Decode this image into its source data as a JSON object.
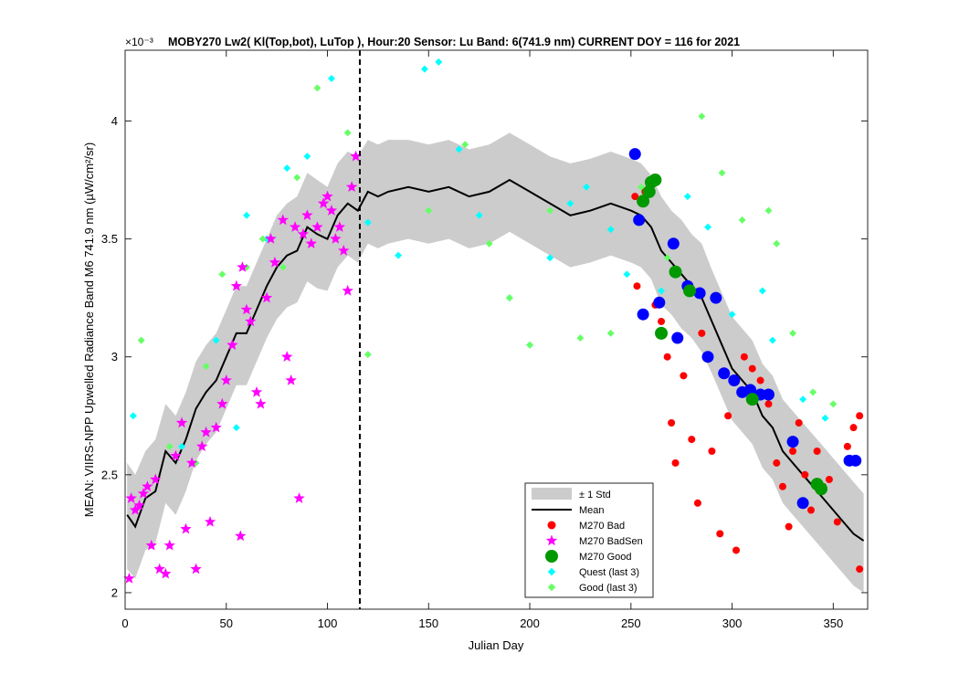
{
  "chart_data": {
    "type": "scatter",
    "title": "MOBY270   Lw2( Kl(Top,bot), LuTop ),   Hour:20 Sensor: Lu Band: 6(741.9 nm)   CURRENT DOY = 116 for 2021",
    "exponent_label": "×10⁻³",
    "xlabel": "Julian Day",
    "ylabel": "MEAN: VIIRS-NPP Upwelled Radiance Band M6 741.9 nm (µW/cm²/sr)",
    "xlim": [
      0,
      367
    ],
    "ylim": [
      1.93,
      4.3
    ],
    "xticks": [
      0,
      50,
      100,
      150,
      200,
      250,
      300,
      350
    ],
    "yticks": [
      2,
      2.5,
      3,
      3.5,
      4
    ],
    "xtick_labels": [
      "0",
      "50",
      "100",
      "150",
      "200",
      "250",
      "300",
      "350"
    ],
    "ytick_labels": [
      "2",
      "2.5",
      "3",
      "3.5",
      "4"
    ],
    "current_doy": 116,
    "legend": {
      "position": "bottom-center",
      "entries": [
        "± 1 Std",
        "Mean",
        "M270 Bad",
        "M270 BadSen",
        "M270 Good",
        "Quest (last 3)",
        "Good (last 3)"
      ]
    },
    "colors": {
      "std_band": "#cccccc",
      "mean": "#000000",
      "bad": "#ff0000",
      "badsen": "#ff00ff",
      "good": "#009900",
      "quest": "#00ffff",
      "good3": "#66ff66",
      "blue": "#0000ff"
    },
    "mean": {
      "x": [
        1,
        5,
        10,
        15,
        20,
        25,
        30,
        35,
        40,
        45,
        50,
        55,
        60,
        65,
        70,
        75,
        80,
        85,
        90,
        95,
        100,
        105,
        110,
        115,
        120,
        125,
        130,
        140,
        150,
        160,
        170,
        180,
        190,
        200,
        210,
        220,
        230,
        240,
        250,
        255,
        260,
        265,
        270,
        275,
        280,
        285,
        290,
        295,
        300,
        305,
        310,
        315,
        320,
        325,
        330,
        335,
        340,
        345,
        350,
        355,
        360,
        365
      ],
      "y": [
        2.33,
        2.28,
        2.4,
        2.43,
        2.6,
        2.55,
        2.65,
        2.78,
        2.85,
        2.9,
        3.0,
        3.1,
        3.1,
        3.2,
        3.3,
        3.38,
        3.43,
        3.45,
        3.55,
        3.52,
        3.5,
        3.6,
        3.65,
        3.62,
        3.7,
        3.68,
        3.7,
        3.72,
        3.7,
        3.72,
        3.68,
        3.7,
        3.75,
        3.7,
        3.65,
        3.6,
        3.62,
        3.65,
        3.62,
        3.6,
        3.55,
        3.45,
        3.4,
        3.35,
        3.3,
        3.25,
        3.15,
        3.05,
        2.95,
        2.9,
        2.85,
        2.75,
        2.7,
        2.6,
        2.55,
        2.5,
        2.45,
        2.4,
        2.35,
        2.3,
        2.25,
        2.22
      ]
    },
    "std": {
      "upper": [
        2.55,
        2.5,
        2.6,
        2.65,
        2.8,
        2.75,
        2.85,
        2.98,
        3.05,
        3.1,
        3.2,
        3.3,
        3.3,
        3.4,
        3.5,
        3.6,
        3.65,
        3.68,
        3.78,
        3.75,
        3.72,
        3.82,
        3.87,
        3.85,
        3.92,
        3.9,
        3.92,
        3.92,
        3.9,
        3.92,
        3.88,
        3.9,
        3.95,
        3.9,
        3.85,
        3.82,
        3.84,
        3.87,
        3.84,
        3.82,
        3.77,
        3.68,
        3.62,
        3.58,
        3.52,
        3.48,
        3.37,
        3.27,
        3.17,
        3.12,
        3.07,
        2.97,
        2.92,
        2.82,
        2.77,
        2.72,
        2.67,
        2.62,
        2.57,
        2.52,
        2.47,
        2.42
      ],
      "lower": [
        2.1,
        2.06,
        2.18,
        2.21,
        2.38,
        2.33,
        2.43,
        2.56,
        2.63,
        2.68,
        2.78,
        2.88,
        2.88,
        2.98,
        3.08,
        3.16,
        3.21,
        3.23,
        3.32,
        3.29,
        3.28,
        3.38,
        3.43,
        3.4,
        3.48,
        3.46,
        3.48,
        3.5,
        3.48,
        3.5,
        3.46,
        3.48,
        3.53,
        3.48,
        3.43,
        3.38,
        3.4,
        3.43,
        3.4,
        3.38,
        3.33,
        3.22,
        3.18,
        3.12,
        3.08,
        3.02,
        2.93,
        2.83,
        2.73,
        2.68,
        2.63,
        2.53,
        2.48,
        2.38,
        2.33,
        2.28,
        2.23,
        2.18,
        2.13,
        2.08,
        2.03,
        2.0
      ]
    },
    "series": [
      {
        "name": "M270 Bad",
        "marker": "dot",
        "x": [
          252,
          253,
          257,
          262,
          265,
          268,
          270,
          272,
          276,
          280,
          283,
          285,
          290,
          294,
          298,
          302,
          306,
          310,
          314,
          318,
          322,
          325,
          328,
          330,
          333,
          336,
          339,
          342,
          345,
          348,
          352,
          357,
          360,
          363,
          363
        ],
        "y": [
          3.68,
          3.3,
          3.7,
          3.22,
          3.15,
          3.0,
          2.72,
          2.55,
          2.92,
          2.65,
          2.38,
          3.1,
          2.6,
          2.25,
          2.75,
          2.18,
          3.0,
          2.95,
          2.9,
          2.8,
          2.55,
          2.45,
          2.28,
          2.6,
          2.72,
          2.5,
          2.35,
          2.6,
          2.45,
          2.48,
          2.3,
          2.62,
          2.7,
          2.75,
          2.1
        ]
      },
      {
        "name": "M270 BadSen",
        "marker": "star",
        "x": [
          2,
          3,
          5,
          7,
          9,
          11,
          13,
          15,
          17,
          20,
          22,
          25,
          28,
          30,
          33,
          35,
          38,
          40,
          42,
          45,
          48,
          50,
          53,
          55,
          57,
          58,
          60,
          62,
          65,
          67,
          70,
          72,
          74,
          78,
          80,
          82,
          84,
          86,
          88,
          90,
          92,
          95,
          98,
          100,
          102,
          104,
          106,
          108,
          110,
          112,
          114
        ],
        "y": [
          2.06,
          2.4,
          2.35,
          2.37,
          2.42,
          2.45,
          2.2,
          2.48,
          2.1,
          2.08,
          2.2,
          2.58,
          2.72,
          2.27,
          2.55,
          2.1,
          2.62,
          2.68,
          2.3,
          2.7,
          2.8,
          2.9,
          3.05,
          3.3,
          2.24,
          3.38,
          3.2,
          3.15,
          2.85,
          2.8,
          3.25,
          3.5,
          3.4,
          3.58,
          3.0,
          2.9,
          3.55,
          2.4,
          3.52,
          3.6,
          3.48,
          3.55,
          3.65,
          3.68,
          3.62,
          3.5,
          3.55,
          3.45,
          3.28,
          3.72,
          3.85
        ]
      },
      {
        "name": "M270 Good",
        "marker": "bigdot",
        "x": [
          256,
          259,
          260,
          262,
          265,
          272,
          279,
          310,
          342,
          344
        ],
        "y": [
          3.66,
          3.7,
          3.74,
          3.75,
          3.1,
          3.36,
          3.28,
          2.82,
          2.46,
          2.44
        ]
      },
      {
        "name": "Quest (last 3)",
        "marker": "diamond",
        "x": [
          4,
          28,
          45,
          55,
          60,
          70,
          80,
          90,
          102,
          120,
          135,
          148,
          155,
          165,
          175,
          190,
          200,
          210,
          220,
          228,
          240,
          248,
          265,
          278,
          288,
          300,
          315,
          320,
          335,
          346
        ],
        "y": [
          2.75,
          2.62,
          3.07,
          2.7,
          3.6,
          3.5,
          3.8,
          3.85,
          4.18,
          3.57,
          3.43,
          4.22,
          4.25,
          3.88,
          3.6,
          3.25,
          3.05,
          3.42,
          3.65,
          3.72,
          3.54,
          3.35,
          3.28,
          3.68,
          3.55,
          3.18,
          3.28,
          3.07,
          2.82,
          2.74
        ]
      },
      {
        "name": "Good (last 3)",
        "marker": "diamond",
        "x": [
          8,
          22,
          35,
          40,
          48,
          60,
          68,
          78,
          85,
          95,
          110,
          120,
          150,
          168,
          180,
          190,
          200,
          210,
          225,
          240,
          255,
          268,
          285,
          295,
          305,
          318,
          322,
          330,
          340,
          350
        ],
        "y": [
          3.07,
          2.62,
          2.55,
          2.96,
          3.35,
          3.38,
          3.5,
          3.38,
          3.76,
          4.14,
          3.95,
          3.01,
          3.62,
          3.9,
          3.48,
          3.25,
          3.05,
          3.62,
          3.08,
          3.1,
          3.72,
          3.42,
          4.02,
          3.78,
          3.58,
          3.62,
          3.48,
          3.1,
          2.85,
          2.8
        ]
      },
      {
        "marker": "bluedot",
        "x": [
          252,
          254,
          256,
          264,
          271,
          273,
          278,
          284,
          288,
          292,
          296,
          301,
          305,
          309,
          314,
          318,
          330,
          335,
          358,
          361
        ],
        "y": [
          3.86,
          3.58,
          3.18,
          3.23,
          3.48,
          3.08,
          3.3,
          3.27,
          3.0,
          3.25,
          2.93,
          2.9,
          2.85,
          2.86,
          2.84,
          2.84,
          2.64,
          2.38,
          2.56,
          2.56
        ]
      }
    ]
  }
}
